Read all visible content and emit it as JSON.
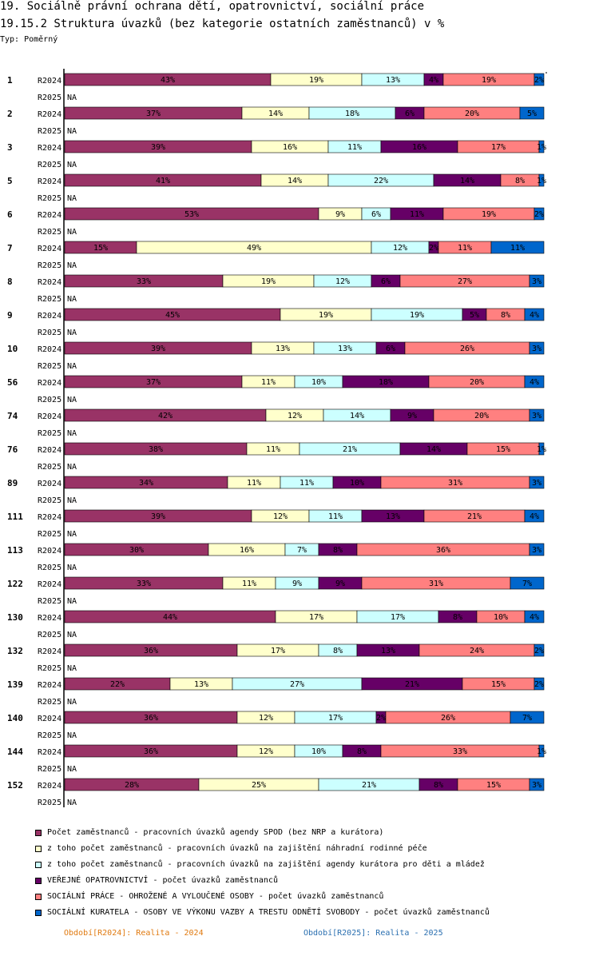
{
  "title": "19. Sociálně právní ochrana dětí, opatrovnictví, sociální práce",
  "subtitle": "19.15.2 Struktura úvazků (bez kategorie ostatních zaměstnanců) v %",
  "type_label": "Typ: Poměrný",
  "chart_data": {
    "type": "bar",
    "orientation": "horizontal",
    "stacked": true,
    "unit": "%",
    "xlim": [
      0,
      100
    ],
    "series": [
      {
        "name": "Počet zaměstnanců - pracovních úvazků agendy SPOD (bez NRP a kurátora)",
        "color": "#993366"
      },
      {
        "name": "z toho počet zaměstnanců - pracovních úvazků na zajištění náhradní rodinné péče",
        "color": "#ffffcc"
      },
      {
        "name": "z toho počet zaměstnanců - pracovních úvazků na zajištění agendy kurátora pro děti a mládež",
        "color": "#ccffff"
      },
      {
        "name": "VEŘEJNÉ OPATROVNICTVÍ - počet úvazků zaměstnanců",
        "color": "#660066"
      },
      {
        "name": "SOCIÁLNÍ PRÁCE - OHROŽENÉ A VYLOUČENÉ OSOBY - počet úvazků zaměstnanců",
        "color": "#ff8080"
      },
      {
        "name": "SOCIÁLNÍ KURATELA - OSOBY VE VÝKONU VAZBY A TRESTU ODNĚTÍ SVOBODY - počet úvazků zaměstnanců",
        "color": "#0066cc"
      }
    ],
    "row_labels": [
      "R2024",
      "R2025"
    ],
    "na_label": "NA",
    "groups": [
      {
        "id": "1",
        "r2024": [
          43,
          19,
          13,
          4,
          19,
          2
        ],
        "r2025": null
      },
      {
        "id": "2",
        "r2024": [
          37,
          14,
          18,
          6,
          20,
          5
        ],
        "r2025": null
      },
      {
        "id": "3",
        "r2024": [
          39,
          16,
          11,
          16,
          17,
          1
        ],
        "r2025": null
      },
      {
        "id": "5",
        "r2024": [
          41,
          14,
          22,
          14,
          8,
          1
        ],
        "r2025": null
      },
      {
        "id": "6",
        "r2024": [
          53,
          9,
          6,
          11,
          19,
          2
        ],
        "r2025": null
      },
      {
        "id": "7",
        "r2024": [
          15,
          49,
          12,
          2,
          11,
          11
        ],
        "r2025": null
      },
      {
        "id": "8",
        "r2024": [
          33,
          19,
          12,
          6,
          27,
          3
        ],
        "r2025": null
      },
      {
        "id": "9",
        "r2024": [
          45,
          19,
          19,
          5,
          8,
          4
        ],
        "r2025": null
      },
      {
        "id": "10",
        "r2024": [
          39,
          13,
          13,
          6,
          26,
          3
        ],
        "r2025": null
      },
      {
        "id": "56",
        "r2024": [
          37,
          11,
          10,
          18,
          20,
          4
        ],
        "r2025": null
      },
      {
        "id": "74",
        "r2024": [
          42,
          12,
          14,
          9,
          20,
          3
        ],
        "r2025": null
      },
      {
        "id": "76",
        "r2024": [
          38,
          11,
          21,
          14,
          15,
          1
        ],
        "r2025": null
      },
      {
        "id": "89",
        "r2024": [
          34,
          11,
          11,
          10,
          31,
          3
        ],
        "r2025": null
      },
      {
        "id": "111",
        "r2024": [
          39,
          12,
          11,
          13,
          21,
          4
        ],
        "r2025": null
      },
      {
        "id": "113",
        "r2024": [
          30,
          16,
          7,
          8,
          36,
          3
        ],
        "r2025": null
      },
      {
        "id": "122",
        "r2024": [
          33,
          11,
          9,
          9,
          31,
          7
        ],
        "r2025": null
      },
      {
        "id": "130",
        "r2024": [
          44,
          17,
          17,
          8,
          10,
          4
        ],
        "r2025": null
      },
      {
        "id": "132",
        "r2024": [
          36,
          17,
          8,
          13,
          24,
          2
        ],
        "r2025": null
      },
      {
        "id": "139",
        "r2024": [
          22,
          13,
          27,
          21,
          15,
          2
        ],
        "r2025": null
      },
      {
        "id": "140",
        "r2024": [
          36,
          12,
          17,
          2,
          26,
          7
        ],
        "r2025": null
      },
      {
        "id": "144",
        "r2024": [
          36,
          12,
          10,
          8,
          33,
          1
        ],
        "r2025": null
      },
      {
        "id": "152",
        "r2024": [
          28,
          25,
          21,
          8,
          15,
          3
        ],
        "r2025": null
      }
    ]
  },
  "periods": {
    "r2024": "Období[R2024]: Realita - 2024",
    "r2025": "Období[R2025]: Realita - 2025"
  }
}
